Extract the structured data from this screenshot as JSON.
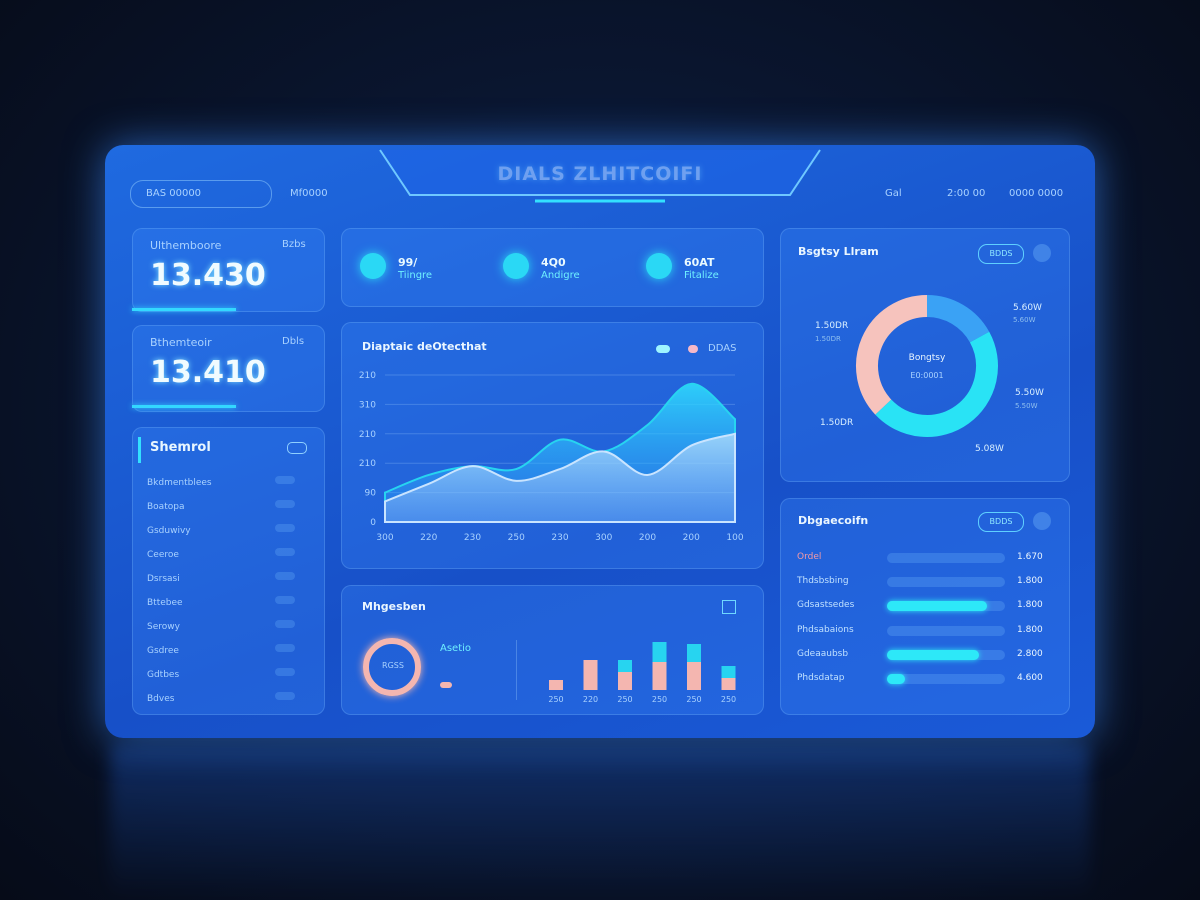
{
  "header": {
    "title": "DIALS ZLHITCOIFI",
    "search": "BAS 00000",
    "tab": "Mf0000",
    "links": [
      "Gal",
      "2:00 00",
      "0000 0000"
    ]
  },
  "stats": [
    {
      "label": "Ulthemboore",
      "badge": "Bzbs",
      "value": "13.430"
    },
    {
      "label": "Bthemteoir",
      "badge": "Dbls",
      "value": "13.410"
    }
  ],
  "sidebar": {
    "title": "Shemrol",
    "items": [
      "Bkdmentblees",
      "Boatopa",
      "Gsduwivy",
      "Ceeroe",
      "Dsrsasi",
      "Bttebee",
      "Serowy",
      "Gsdree",
      "Gdtbes",
      "Bdves"
    ]
  },
  "pills": [
    {
      "value": "99/",
      "label": "Tiingre"
    },
    {
      "value": "4Q0",
      "label": "Andigre"
    },
    {
      "value": "60AT",
      "label": "Fitalize"
    }
  ],
  "area_chart": {
    "type": "area",
    "title": "Diaptaic deOtecthat",
    "legend": "DDAS",
    "categories": [
      "300",
      "220",
      "230",
      "250",
      "230",
      "300",
      "200",
      "200",
      "100"
    ],
    "series": [
      {
        "color": "#27d4f0",
        "values": [
          50,
          80,
          95,
          90,
          140,
          120,
          165,
          235,
          175
        ]
      },
      {
        "color": "#c9e4ff",
        "values": [
          35,
          65,
          95,
          70,
          90,
          120,
          80,
          130,
          150
        ]
      }
    ],
    "ylim": [
      0,
      250
    ],
    "yticks": [
      0,
      {
        "value": 50,
        "label": "90"
      },
      {
        "value": 100,
        "label": "210"
      },
      {
        "value": 150,
        "label": "210"
      },
      {
        "value": 200,
        "label": "310"
      },
      {
        "value": 250,
        "label": "210"
      }
    ]
  },
  "bar_panel": {
    "title": "Mhgesben",
    "ring_label": "RGSS",
    "caption": "Asetio",
    "chart": {
      "type": "bar",
      "categories": [
        "250",
        "220",
        "250",
        "250",
        "250",
        "250"
      ],
      "ylim": [
        0,
        60
      ],
      "series": [
        {
          "color": "#f4b6b0",
          "values": [
            10,
            30,
            18,
            28,
            28,
            12
          ]
        },
        {
          "color": "#27d4f0",
          "values": [
            0,
            0,
            12,
            20,
            18,
            12
          ]
        }
      ]
    }
  },
  "donut_panel": {
    "title": "Bsgtsy Llram",
    "button": "BDDS",
    "center_title": "Bongtsy",
    "center_sub": "E0:0001",
    "chart": {
      "type": "pie",
      "series": [
        {
          "name": "5.60W",
          "color": "#3aa2f5",
          "values": [
            17
          ]
        },
        {
          "name": "5.50W",
          "color": "#29e3f5",
          "values": [
            46
          ]
        },
        {
          "name": "1.50DR",
          "color": "#f6c3bd",
          "values": [
            37
          ]
        }
      ]
    },
    "labels": [
      "1.50DR",
      "5.60W",
      "5.50W",
      "1.50DR",
      "5.08W"
    ]
  },
  "progress_panel": {
    "title": "Dbgaecoifn",
    "button": "BDDS",
    "rows": [
      {
        "label": "Ordel",
        "value": "1.670",
        "fill": 0
      },
      {
        "label": "Thdsbsbing",
        "value": "1.800",
        "fill": 0
      },
      {
        "label": "Gdsastsedes",
        "value": "1.800",
        "fill": 85
      },
      {
        "label": "Phdsabaions",
        "value": "1.800",
        "fill": 0
      },
      {
        "label": "Gdeaaubsb",
        "value": "2.800",
        "fill": 78
      },
      {
        "label": "Phdsdatap",
        "value": "4.600",
        "fill": 15
      }
    ]
  }
}
